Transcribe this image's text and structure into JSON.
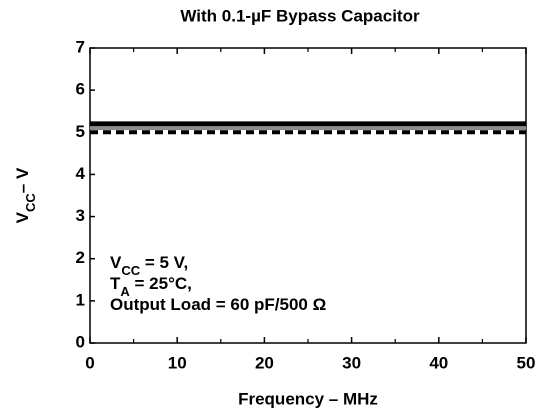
{
  "chart_data": {
    "type": "line",
    "title": "With 0.1-µF Bypass Capacitor",
    "x_label": "Frequency – MHz",
    "y_label": [
      "V",
      "CC",
      "– V"
    ],
    "annotations": [
      [
        "V",
        "CC",
        " = 5 V,"
      ],
      [
        "T",
        "A",
        " = 25°C,"
      ],
      [
        "Output Load = 60 pF/500 Ω"
      ]
    ],
    "x": [
      0,
      50
    ],
    "series": [
      {
        "color": "#000000",
        "linewidth": 5,
        "style": "solid",
        "values": [
          5.2,
          5.2
        ]
      },
      {
        "color": "#8c8c8c",
        "linewidth": 4,
        "style": "solid",
        "values": [
          5.1,
          5.1
        ]
      },
      {
        "color": "#000000",
        "linewidth": 4,
        "style": "dashed",
        "values": [
          5.0,
          5.0
        ]
      }
    ],
    "xlim": [
      0,
      50
    ],
    "xticks": [
      0,
      10,
      20,
      30,
      40,
      50
    ],
    "xminorticks": [
      5,
      15,
      25,
      35,
      45
    ],
    "ylim": [
      0,
      7
    ],
    "yticks": [
      0,
      1,
      2,
      3,
      4,
      5,
      6,
      7
    ]
  }
}
